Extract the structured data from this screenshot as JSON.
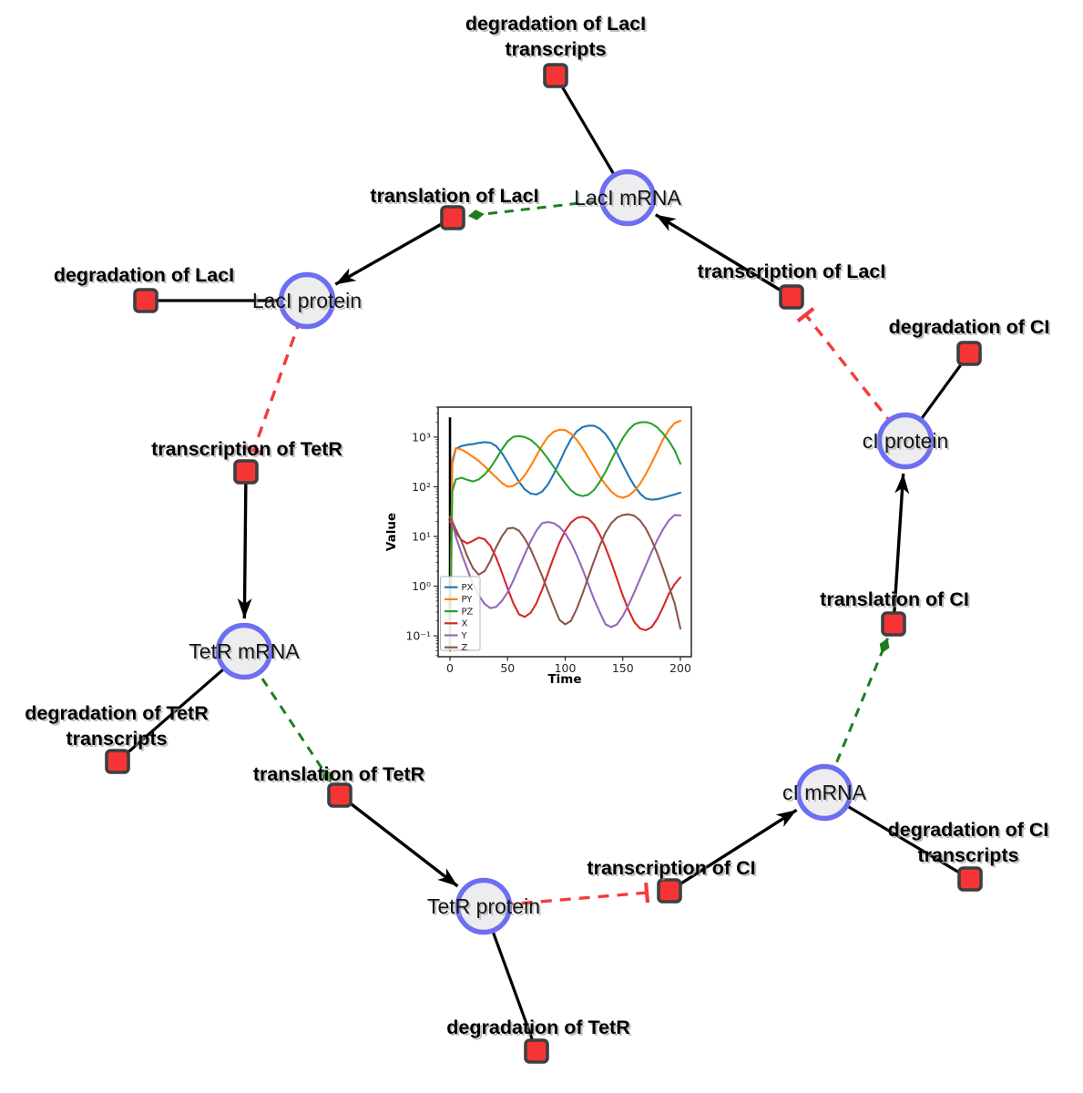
{
  "diagram": {
    "species": [
      {
        "id": "laci_mrna",
        "label": "LacI mRNA"
      },
      {
        "id": "laci_protein",
        "label": "LacI protein"
      },
      {
        "id": "tetr_mrna",
        "label": "TetR mRNA"
      },
      {
        "id": "tetr_protein",
        "label": "TetR protein"
      },
      {
        "id": "ci_mrna",
        "label": "cI mRNA"
      },
      {
        "id": "ci_protein",
        "label": "cI protein"
      }
    ],
    "reactions": [
      {
        "id": "deg_laci_tx",
        "label": [
          "degradation of LacI",
          "transcripts"
        ]
      },
      {
        "id": "translation_laci",
        "label": [
          "translation of LacI"
        ]
      },
      {
        "id": "deg_laci",
        "label": [
          "degradation of LacI"
        ]
      },
      {
        "id": "transcription_laci",
        "label": [
          "transcription of LacI"
        ]
      },
      {
        "id": "deg_ci",
        "label": [
          "degradation of CI"
        ]
      },
      {
        "id": "transcription_tetr",
        "label": [
          "transcription of TetR"
        ]
      },
      {
        "id": "deg_tetr_tx",
        "label": [
          "degradation of TetR",
          "transcripts"
        ]
      },
      {
        "id": "translation_tetr",
        "label": [
          "translation of TetR"
        ]
      },
      {
        "id": "deg_tetr",
        "label": [
          "degradation of TetR"
        ]
      },
      {
        "id": "transcription_ci",
        "label": [
          "transcription of CI"
        ]
      },
      {
        "id": "deg_ci_tx",
        "label": [
          "degradation of CI",
          "transcripts"
        ]
      },
      {
        "id": "translation_ci",
        "label": [
          "translation of CI"
        ]
      }
    ],
    "edges": [
      {
        "from": "laci_mrna",
        "to": "deg_laci_tx",
        "type": "consumption"
      },
      {
        "from": "transcription_laci",
        "to": "laci_mrna",
        "type": "production"
      },
      {
        "from": "laci_mrna",
        "to": "translation_laci",
        "type": "modifier"
      },
      {
        "from": "translation_laci",
        "to": "laci_protein",
        "type": "production"
      },
      {
        "from": "laci_protein",
        "to": "deg_laci",
        "type": "consumption"
      },
      {
        "from": "laci_protein",
        "to": "transcription_tetr",
        "type": "inhibition"
      },
      {
        "from": "transcription_tetr",
        "to": "tetr_mrna",
        "type": "production"
      },
      {
        "from": "tetr_mrna",
        "to": "deg_tetr_tx",
        "type": "consumption"
      },
      {
        "from": "tetr_mrna",
        "to": "translation_tetr",
        "type": "modifier"
      },
      {
        "from": "translation_tetr",
        "to": "tetr_protein",
        "type": "production"
      },
      {
        "from": "tetr_protein",
        "to": "deg_tetr",
        "type": "consumption"
      },
      {
        "from": "tetr_protein",
        "to": "transcription_ci",
        "type": "inhibition"
      },
      {
        "from": "transcription_ci",
        "to": "ci_mrna",
        "type": "production"
      },
      {
        "from": "ci_mrna",
        "to": "deg_ci_tx",
        "type": "consumption"
      },
      {
        "from": "ci_mrna",
        "to": "translation_ci",
        "type": "modifier"
      },
      {
        "from": "translation_ci",
        "to": "ci_protein",
        "type": "production"
      },
      {
        "from": "ci_protein",
        "to": "deg_ci",
        "type": "consumption"
      },
      {
        "from": "ci_protein",
        "to": "transcription_laci",
        "type": "inhibition"
      }
    ],
    "colors": {
      "species_fill": "#ededf0",
      "species_border": "#6e6ef2",
      "reaction_fill": "#f53535",
      "reaction_border": "#3f3f3f",
      "production_edge": "#000000",
      "consumption_edge": "#000000",
      "modifier_edge": "#1e7d1e",
      "inhibition_edge": "#f43b3b"
    }
  },
  "chart_data": {
    "type": "line",
    "title": "",
    "xlabel": "Time",
    "ylabel": "Value",
    "yscale": "log",
    "grid": false,
    "legend_position": "lower left",
    "xlim": [
      -10.3,
      209.5
    ],
    "ylim": [
      0.038,
      4000
    ],
    "xticks": [
      0,
      50,
      100,
      150,
      200
    ],
    "yticks": {
      "values": [
        0.1,
        1,
        10,
        100,
        1000
      ],
      "labels": [
        "10⁻¹",
        "10⁰",
        "10¹",
        "10²",
        "10³"
      ]
    },
    "annotations": [
      {
        "type": "vline",
        "x": 0,
        "y_from": 0.05,
        "y_to": 2500
      }
    ],
    "x": [
      0,
      2,
      5,
      10,
      15,
      20,
      25,
      30,
      35,
      40,
      45,
      50,
      55,
      60,
      65,
      70,
      75,
      80,
      85,
      90,
      95,
      100,
      105,
      110,
      115,
      120,
      125,
      130,
      135,
      140,
      145,
      150,
      155,
      160,
      165,
      170,
      175,
      180,
      185,
      190,
      195,
      200
    ],
    "series": [
      {
        "name": "PX",
        "color": "#1f77b4",
        "values": [
          0.05,
          300,
          580,
          660,
          700,
          720,
          760,
          790,
          770,
          660,
          480,
          310,
          195,
          125,
          88,
          73,
          70,
          80,
          110,
          180,
          310,
          550,
          900,
          1300,
          1580,
          1700,
          1690,
          1480,
          1150,
          780,
          480,
          280,
          165,
          105,
          73,
          58,
          55,
          56,
          60,
          65,
          70,
          76
        ]
      },
      {
        "name": "PY",
        "color": "#ff7f0e",
        "values": [
          0.05,
          350,
          600,
          560,
          480,
          400,
          330,
          260,
          200,
          155,
          120,
          100,
          104,
          125,
          170,
          260,
          420,
          680,
          1000,
          1280,
          1410,
          1380,
          1170,
          880,
          600,
          390,
          250,
          160,
          110,
          80,
          65,
          60,
          66,
          82,
          115,
          180,
          300,
          520,
          900,
          1400,
          1900,
          2120
        ]
      },
      {
        "name": "PZ",
        "color": "#2ca02c",
        "values": [
          0.05,
          80,
          140,
          152,
          138,
          128,
          140,
          175,
          240,
          360,
          560,
          820,
          1010,
          1045,
          1000,
          880,
          700,
          520,
          370,
          250,
          170,
          118,
          85,
          70,
          65,
          69,
          86,
          125,
          200,
          340,
          580,
          950,
          1400,
          1800,
          1980,
          2000,
          1860,
          1560,
          1180,
          840,
          540,
          290
        ]
      },
      {
        "name": "X",
        "color": "#d62728",
        "values": [
          20,
          16,
          12,
          8.5,
          7.2,
          8.2,
          9.5,
          8.8,
          6.5,
          3.8,
          1.9,
          0.9,
          0.45,
          0.27,
          0.24,
          0.29,
          0.45,
          0.85,
          1.8,
          3.8,
          7.5,
          13,
          19,
          23.5,
          25,
          23,
          17.5,
          11,
          6,
          3,
          1.4,
          0.65,
          0.33,
          0.19,
          0.14,
          0.13,
          0.15,
          0.22,
          0.38,
          0.7,
          1.1,
          1.5
        ]
      },
      {
        "name": "Y",
        "color": "#9467bd",
        "values": [
          25,
          18,
          10,
          4.5,
          2.2,
          1.1,
          0.65,
          0.44,
          0.36,
          0.38,
          0.5,
          0.75,
          1.3,
          2.4,
          4.4,
          8,
          13,
          18.5,
          19.5,
          18.5,
          15.5,
          11.5,
          7.5,
          4.2,
          2.2,
          1.1,
          0.55,
          0.3,
          0.17,
          0.15,
          0.17,
          0.25,
          0.42,
          0.75,
          1.4,
          2.6,
          4.9,
          8.5,
          14,
          21,
          27,
          26.5
        ]
      },
      {
        "name": "Z",
        "color": "#8c564b",
        "values": [
          25,
          20,
          14,
          8,
          4,
          2.3,
          1.7,
          2.0,
          3.2,
          6,
          10,
          14.5,
          15,
          13,
          9,
          5.5,
          3,
          1.6,
          0.8,
          0.4,
          0.21,
          0.17,
          0.2,
          0.35,
          0.7,
          1.5,
          3.2,
          6.5,
          12,
          18.5,
          24,
          27,
          28,
          26,
          21,
          14.5,
          8.5,
          4.5,
          2.2,
          1.0,
          0.45,
          0.14
        ]
      }
    ]
  }
}
